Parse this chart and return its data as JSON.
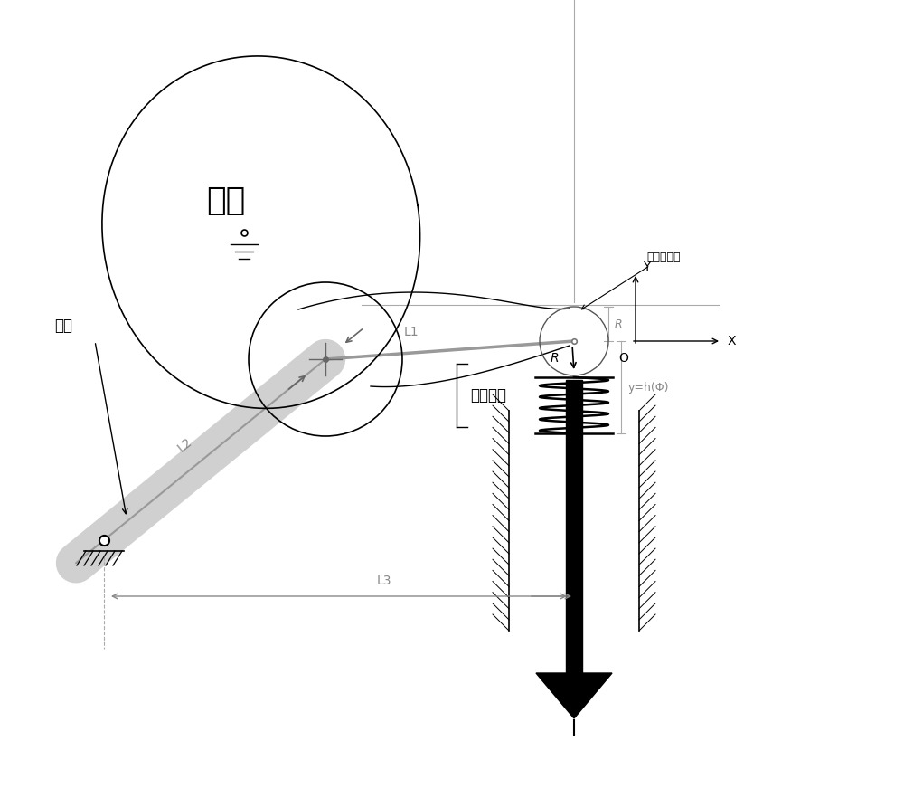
{
  "bg_color": "#ffffff",
  "line_color": "#000000",
  "gray_color": "#888888",
  "cam_label": "凸轮",
  "roller_label": "摇臂滚柱",
  "arm_label": "摇臂",
  "contact_label": "接触面圆心",
  "y_eq_label": "y=h(Φ)",
  "L1_label": "L1",
  "L2_label": "L2",
  "L3_label": "L3",
  "R_label": "R",
  "X_label": "X",
  "Y_label": "Y",
  "O_label": "O"
}
